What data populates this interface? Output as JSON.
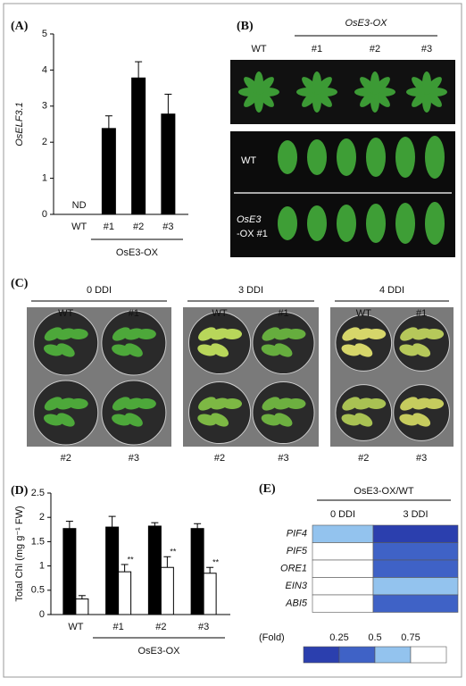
{
  "chart_data": [
    {
      "type": "bar",
      "label": "(A)",
      "y_label": "OsELF3.1",
      "annotation": "ND",
      "group_label": "OsE3-OX",
      "categories": [
        "WT",
        "#1",
        "#2",
        "#3"
      ],
      "values": [
        null,
        2.38,
        3.78,
        2.78
      ],
      "errors": [
        null,
        0.35,
        0.45,
        0.55
      ],
      "color": "#000000",
      "ylim": [
        0,
        5
      ],
      "yticks": [
        0,
        1,
        2,
        3,
        4,
        5
      ]
    },
    {
      "type": "bar",
      "label": "(D)",
      "y_label": "Total Chl (mg g⁻¹ FW)",
      "group_label": "OsE3-OX",
      "categories": [
        "WT",
        "#1",
        "#2",
        "#3"
      ],
      "series": [
        {
          "color": "#000000",
          "values": [
            1.77,
            1.8,
            1.82,
            1.77
          ],
          "errors": [
            0.15,
            0.22,
            0.07,
            0.1
          ]
        },
        {
          "color": "#ffffff",
          "values": [
            0.32,
            0.88,
            0.97,
            0.85
          ],
          "errors": [
            0.07,
            0.15,
            0.22,
            0.12
          ],
          "annotations": [
            null,
            "**",
            "**",
            "**"
          ]
        }
      ],
      "ylim": [
        0,
        2.5
      ],
      "yticks": [
        0,
        0.5,
        1,
        1.5,
        2,
        2.5
      ]
    },
    {
      "type": "heatmap",
      "label": "(E)",
      "title": "OsE3-OX/WT",
      "columns": [
        "0 DDI",
        "3 DDI"
      ],
      "rows": [
        "PIF4",
        "PIF5",
        "ORE1",
        "EIN3",
        "ABI5"
      ],
      "values": [
        [
          0.6,
          0.15
        ],
        [
          1,
          0.3
        ],
        [
          1,
          0.3
        ],
        [
          1,
          0.6
        ],
        [
          1,
          0.3
        ]
      ],
      "colorbar": {
        "label": "(Fold)",
        "colors": [
          "#2b3fae",
          "#3f62c6",
          "#93c3ee",
          "#ffffff"
        ],
        "ticks": [
          0.25,
          0.5,
          0.75
        ]
      }
    }
  ],
  "panel_b": {
    "label": "(B)",
    "group_label": "OsE3-OX",
    "top_labels": [
      "WT",
      "#1",
      "#2",
      "#3"
    ],
    "row_labels": [
      "WT",
      "OsE3",
      "-OX #1"
    ]
  },
  "panel_c": {
    "label": "(C)",
    "plates": [
      {
        "title": "0 DDI",
        "top": [
          "WT",
          "#1"
        ],
        "bottom": [
          "#2",
          "#3"
        ]
      },
      {
        "title": "3 DDI",
        "top": [
          "WT",
          "#1"
        ],
        "bottom": [
          "#2",
          "#3"
        ]
      },
      {
        "title": "4 DDI",
        "top": [
          "WT",
          "#1"
        ],
        "bottom": [
          "#2",
          "#3"
        ]
      }
    ]
  }
}
